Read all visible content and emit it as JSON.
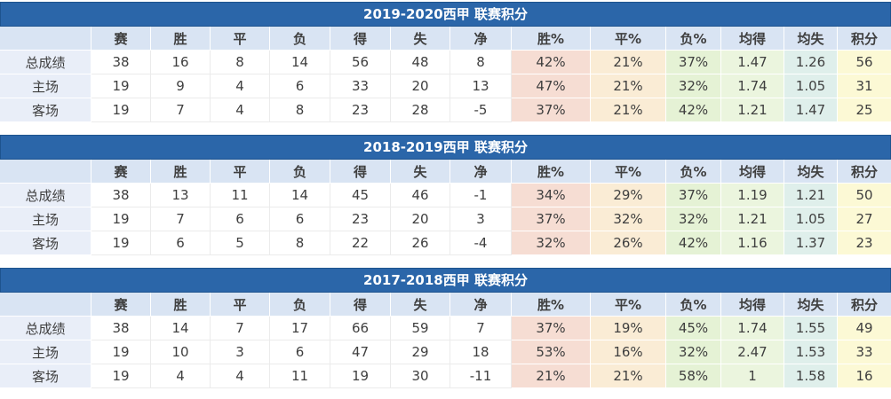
{
  "colors": {
    "title_bar": "#2b66a9",
    "title_text": "#ffffff",
    "header_row": "#d9e4f3",
    "row_label": "#e9eef8",
    "win_pct": "#f6ddd3",
    "draw_pct": "#faecd5",
    "loss_pct": "#e5f2d5",
    "avg_for": "#ebf5de",
    "avg_against": "#dfefeb",
    "points": "#fcf9d5"
  },
  "columns": [
    "",
    "赛",
    "胜",
    "平",
    "负",
    "得",
    "失",
    "净",
    "胜%",
    "平%",
    "负%",
    "均得",
    "均失",
    "积分"
  ],
  "tables": [
    {
      "title": "2019-2020西甲 联赛积分",
      "rows": [
        {
          "label": "总成绩",
          "values": [
            "38",
            "16",
            "8",
            "14",
            "56",
            "48",
            "8",
            "42%",
            "21%",
            "37%",
            "1.47",
            "1.26",
            "56"
          ]
        },
        {
          "label": "主场",
          "values": [
            "19",
            "9",
            "4",
            "6",
            "33",
            "20",
            "13",
            "47%",
            "21%",
            "32%",
            "1.74",
            "1.05",
            "31"
          ]
        },
        {
          "label": "客场",
          "values": [
            "19",
            "7",
            "4",
            "8",
            "23",
            "28",
            "-5",
            "37%",
            "21%",
            "42%",
            "1.21",
            "1.47",
            "25"
          ]
        }
      ]
    },
    {
      "title": "2018-2019西甲 联赛积分",
      "rows": [
        {
          "label": "总成绩",
          "values": [
            "38",
            "13",
            "11",
            "14",
            "45",
            "46",
            "-1",
            "34%",
            "29%",
            "37%",
            "1.19",
            "1.21",
            "50"
          ]
        },
        {
          "label": "主场",
          "values": [
            "19",
            "7",
            "6",
            "6",
            "23",
            "20",
            "3",
            "37%",
            "32%",
            "32%",
            "1.21",
            "1.05",
            "27"
          ]
        },
        {
          "label": "客场",
          "values": [
            "19",
            "6",
            "5",
            "8",
            "22",
            "26",
            "-4",
            "32%",
            "26%",
            "42%",
            "1.16",
            "1.37",
            "23"
          ]
        }
      ]
    },
    {
      "title": "2017-2018西甲 联赛积分",
      "rows": [
        {
          "label": "总成绩",
          "values": [
            "38",
            "14",
            "7",
            "17",
            "66",
            "59",
            "7",
            "37%",
            "19%",
            "45%",
            "1.74",
            "1.55",
            "49"
          ]
        },
        {
          "label": "主场",
          "values": [
            "19",
            "10",
            "3",
            "6",
            "47",
            "29",
            "18",
            "53%",
            "16%",
            "32%",
            "2.47",
            "1.53",
            "33"
          ]
        },
        {
          "label": "客场",
          "values": [
            "19",
            "4",
            "4",
            "11",
            "19",
            "30",
            "-11",
            "21%",
            "21%",
            "58%",
            "1",
            "1.58",
            "16"
          ]
        }
      ]
    }
  ]
}
